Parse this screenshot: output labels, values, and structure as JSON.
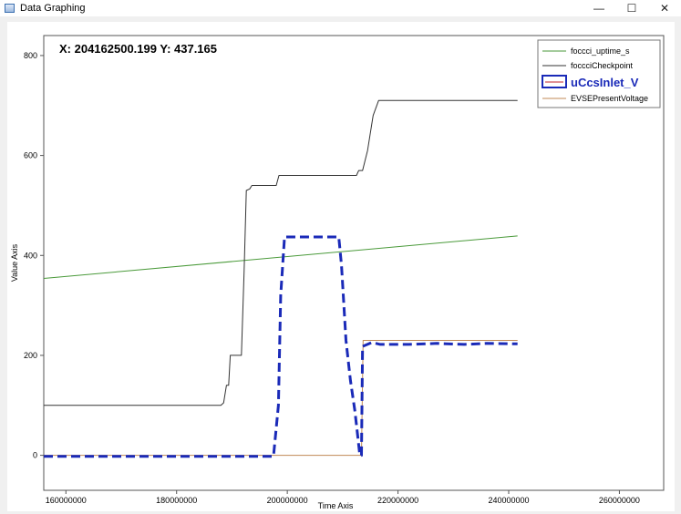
{
  "window": {
    "title": "Data Graphing",
    "controls": [
      "—",
      "☐",
      "✕"
    ]
  },
  "readout": {
    "text": "X: 204162500.199 Y: 437.165"
  },
  "chart_data": {
    "type": "line",
    "title": "",
    "xlabel": "Time Axis",
    "ylabel": "Value Axis",
    "xlim": [
      156000000,
      268000000
    ],
    "ylim": [
      -70,
      840
    ],
    "xticks": [
      {
        "value": 160000000,
        "label": "160000000"
      },
      {
        "value": 180000000,
        "label": "180000000"
      },
      {
        "value": 200000000,
        "label": "200000000"
      },
      {
        "value": 220000000,
        "label": "220000000"
      },
      {
        "value": 240000000,
        "label": "240000000"
      },
      {
        "value": 260000000,
        "label": "260000000"
      }
    ],
    "yticks": [
      {
        "value": 0,
        "label": "0"
      },
      {
        "value": 200,
        "label": "200"
      },
      {
        "value": 400,
        "label": "400"
      },
      {
        "value": 600,
        "label": "600"
      },
      {
        "value": 800,
        "label": "800"
      }
    ],
    "grid": true,
    "legend_position": "top-right",
    "series": [
      {
        "name": "foccci_uptime_s",
        "color": "#4a9a3a",
        "width": 1,
        "dash": "",
        "legend_bold": false,
        "points": [
          [
            156000000,
            354
          ],
          [
            241600000,
            439
          ]
        ]
      },
      {
        "name": "foccciCheckpoint",
        "color": "#333333",
        "width": 1,
        "dash": "",
        "legend_bold": false,
        "points": [
          [
            156000000,
            100
          ],
          [
            188000000,
            100
          ],
          [
            188500000,
            105
          ],
          [
            189000000,
            140
          ],
          [
            189400000,
            140
          ],
          [
            189700000,
            200
          ],
          [
            191700000,
            200
          ],
          [
            192200000,
            370
          ],
          [
            192600000,
            530
          ],
          [
            193200000,
            533
          ],
          [
            193600000,
            540
          ],
          [
            198000000,
            540
          ],
          [
            198500000,
            560
          ],
          [
            212500000,
            560
          ],
          [
            212900000,
            570
          ],
          [
            213600000,
            570
          ],
          [
            214500000,
            610
          ],
          [
            215500000,
            680
          ],
          [
            216500000,
            710
          ],
          [
            241600000,
            710
          ]
        ]
      },
      {
        "name": "uCcsInlet_V",
        "color": "#1a2ab8",
        "width": 3,
        "dash": "10,5",
        "legend_bold": true,
        "points": [
          [
            156000000,
            -2
          ],
          [
            197500000,
            -2
          ],
          [
            198400000,
            100
          ],
          [
            198800000,
            320
          ],
          [
            199500000,
            437
          ],
          [
            209300000,
            437
          ],
          [
            209800000,
            380
          ],
          [
            210600000,
            230
          ],
          [
            211400000,
            150
          ],
          [
            212200000,
            90
          ],
          [
            212700000,
            40
          ],
          [
            213100000,
            0
          ],
          [
            213400000,
            0
          ],
          [
            213600000,
            218
          ],
          [
            215300000,
            226
          ],
          [
            216800000,
            222
          ],
          [
            222000000,
            222
          ],
          [
            227000000,
            224
          ],
          [
            232000000,
            222
          ],
          [
            236000000,
            224
          ],
          [
            241600000,
            223
          ]
        ]
      },
      {
        "name": "EVSEPresentVoltage",
        "color": "#c08a55",
        "width": 1,
        "dash": "",
        "legend_bold": false,
        "points": [
          [
            156000000,
            0
          ],
          [
            213400000,
            0
          ],
          [
            213700000,
            230
          ],
          [
            216000000,
            230
          ],
          [
            241600000,
            230
          ]
        ]
      }
    ]
  }
}
